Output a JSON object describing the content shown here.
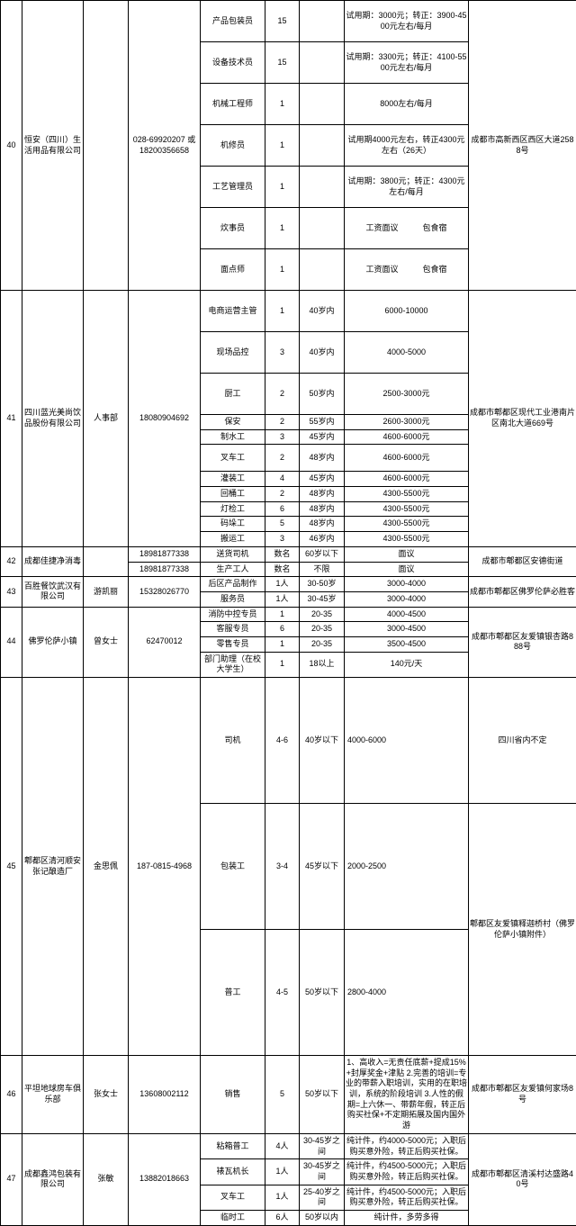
{
  "rows": [
    {
      "id": "40",
      "company": "恒安（四川）生活用品有限公司",
      "contact": "",
      "phone": "028-69920207 或 18200356658",
      "addr": "成都市高新西区西区大道2588号",
      "jobs": [
        {
          "pos": "产品包装员",
          "num": "15",
          "age": "",
          "salary": "试用期：3000元；转正：3900-4500元左右/每月"
        },
        {
          "pos": "设备技术员",
          "num": "15",
          "age": "",
          "salary": "试用期：3300元；转正：4100-5500元左右/每月"
        },
        {
          "pos": "机械工程师",
          "num": "1",
          "age": "",
          "salary": "8000左右/每月"
        },
        {
          "pos": "机修员",
          "num": "1",
          "age": "",
          "salary": "试用期4000元左右，转正4300元左右（26天）"
        },
        {
          "pos": "工艺管理员",
          "num": "1",
          "age": "",
          "salary": "试用期：3800元；转正：4300元左右/每月"
        },
        {
          "pos": "炊事员",
          "num": "1",
          "age": "",
          "salary": "工资面议　　　包食宿"
        },
        {
          "pos": "面点师",
          "num": "1",
          "age": "",
          "salary": "工资面议　　　包食宿"
        }
      ]
    },
    {
      "id": "41",
      "company": "四川蓝光美尚饮品股份有限公司",
      "contact": "人事部",
      "phone": "18080904692",
      "addr": "成都市郫都区现代工业港南片区南北大道669号",
      "jobs": [
        {
          "pos": "电商运营主管",
          "num": "1",
          "age": "40岁内",
          "salary": "6000-10000"
        },
        {
          "pos": "现场品控",
          "num": "3",
          "age": "40岁内",
          "salary": "4000-5000"
        },
        {
          "pos": "厨工",
          "num": "2",
          "age": "50岁内",
          "salary": "2500-3000元"
        },
        {
          "pos": "保安",
          "num": "2",
          "age": "55岁内",
          "salary": "2600-3000元"
        },
        {
          "pos": "制水工",
          "num": "3",
          "age": "45岁内",
          "salary": "4600-6000元"
        },
        {
          "pos": "叉车工",
          "num": "2",
          "age": "48岁内",
          "salary": "4600-6000元"
        },
        {
          "pos": "灌装工",
          "num": "4",
          "age": "45岁内",
          "salary": "4600-6000元"
        },
        {
          "pos": "回桶工",
          "num": "2",
          "age": "48岁内",
          "salary": "4300-5500元"
        },
        {
          "pos": "灯检工",
          "num": "6",
          "age": "48岁内",
          "salary": "4300-5500元"
        },
        {
          "pos": "码垛工",
          "num": "5",
          "age": "48岁内",
          "salary": "4300-5500元"
        },
        {
          "pos": "搬运工",
          "num": "3",
          "age": "46岁内",
          "salary": "4300-5500元"
        }
      ]
    },
    {
      "id": "42",
      "company": "成都佳捷净消毒",
      "contact": "",
      "phone": "18981877338",
      "phone2": "18981877338",
      "addr": "成都市郫都区安德街道",
      "jobs": [
        {
          "pos": "送货司机",
          "num": "数名",
          "age": "60岁以下",
          "salary": "面议"
        },
        {
          "pos": "生产工人",
          "num": "数名",
          "age": "不限",
          "salary": "面议"
        }
      ]
    },
    {
      "id": "43",
      "company": "百胜餐饮武汉有限公司",
      "contact": "游凯丽",
      "phone": "15328026770",
      "addr": "成都市郫都区佛罗伦萨必胜客",
      "jobs": [
        {
          "pos": "后区产品制作",
          "num": "1人",
          "age": "30-50岁",
          "salary": "3000-4000"
        },
        {
          "pos": "服务员",
          "num": "1人",
          "age": "30-45岁",
          "salary": "3000-4000"
        }
      ]
    },
    {
      "id": "44",
      "company": "佛罗伦萨小镇",
      "contact": "曾女士",
      "phone": "62470012",
      "addr": "成都市郫都区友爱镇银杏路888号",
      "jobs": [
        {
          "pos": "消防中控专员",
          "num": "1",
          "age": "20-35",
          "salary": "4000-4500"
        },
        {
          "pos": "客服专员",
          "num": "6",
          "age": "20-35",
          "salary": "3000-4500"
        },
        {
          "pos": "零售专员",
          "num": "1",
          "age": "20-35",
          "salary": "3500-4500"
        },
        {
          "pos": "部门助理（在校大学生）",
          "num": "1",
          "age": "18以上",
          "salary": "140元/天"
        }
      ]
    },
    {
      "id": "45",
      "company": "郫都区清河顺安张记酿造厂",
      "contact": "金思佩",
      "phone": "187-0815-4968",
      "addr1": "四川省内不定",
      "addr2": "郫都区友爱镇释迦桥村（佛罗伦萨小镇附件）",
      "jobs": [
        {
          "pos": "司机",
          "num": "4-6",
          "age": "40岁以下",
          "salary": "4000-6000"
        },
        {
          "pos": "包装工",
          "num": "3-4",
          "age": "45岁以下",
          "salary": "2000-2500"
        },
        {
          "pos": "普工",
          "num": "4-5",
          "age": "50岁以下",
          "salary": "2800-4000"
        }
      ]
    },
    {
      "id": "46",
      "company": "平坦地球房车俱乐部",
      "contact": "张女士",
      "phone": "13608002112",
      "addr": "成都市郫都区友爱镇何家场8号",
      "jobs": [
        {
          "pos": "销售",
          "num": "5",
          "age": "50岁以下",
          "salary": "1、高收入=无责任底薪+提成15%+封厚奖金+津贴\n2.完善的培训=专业的带薪入职培训，实用的在职培训，系统的阶段培训\n3.人性的假期=上六休一、带薪年假，转正后购买社保+不定期拓展及国内国外游"
        }
      ]
    },
    {
      "id": "47",
      "company": "成都鑫鸿包装有限公司",
      "contact": "张敏",
      "phone": "13882018663",
      "addr": "成都市郫都区清溪村达盛路40号",
      "jobs": [
        {
          "pos": "粘箱普工",
          "num": "4人",
          "age": "30-45岁之间",
          "salary": "纯计件，约4000-5000元；入职后购买意外险，转正后购买社保。"
        },
        {
          "pos": "裱瓦机长",
          "num": "1人",
          "age": "30-45岁之间",
          "salary": "纯计件，约4500-5000元；入职后购买意外险，转正后购买社保。"
        },
        {
          "pos": "叉车工",
          "num": "1人",
          "age": "25-40岁之间",
          "salary": "纯计件，约4500-5000元；入职后购买意外险，转正后购买社保。"
        },
        {
          "pos": "临时工",
          "num": "6人",
          "age": "50岁以内",
          "salary": "纯计件，多劳多得"
        }
      ]
    }
  ]
}
